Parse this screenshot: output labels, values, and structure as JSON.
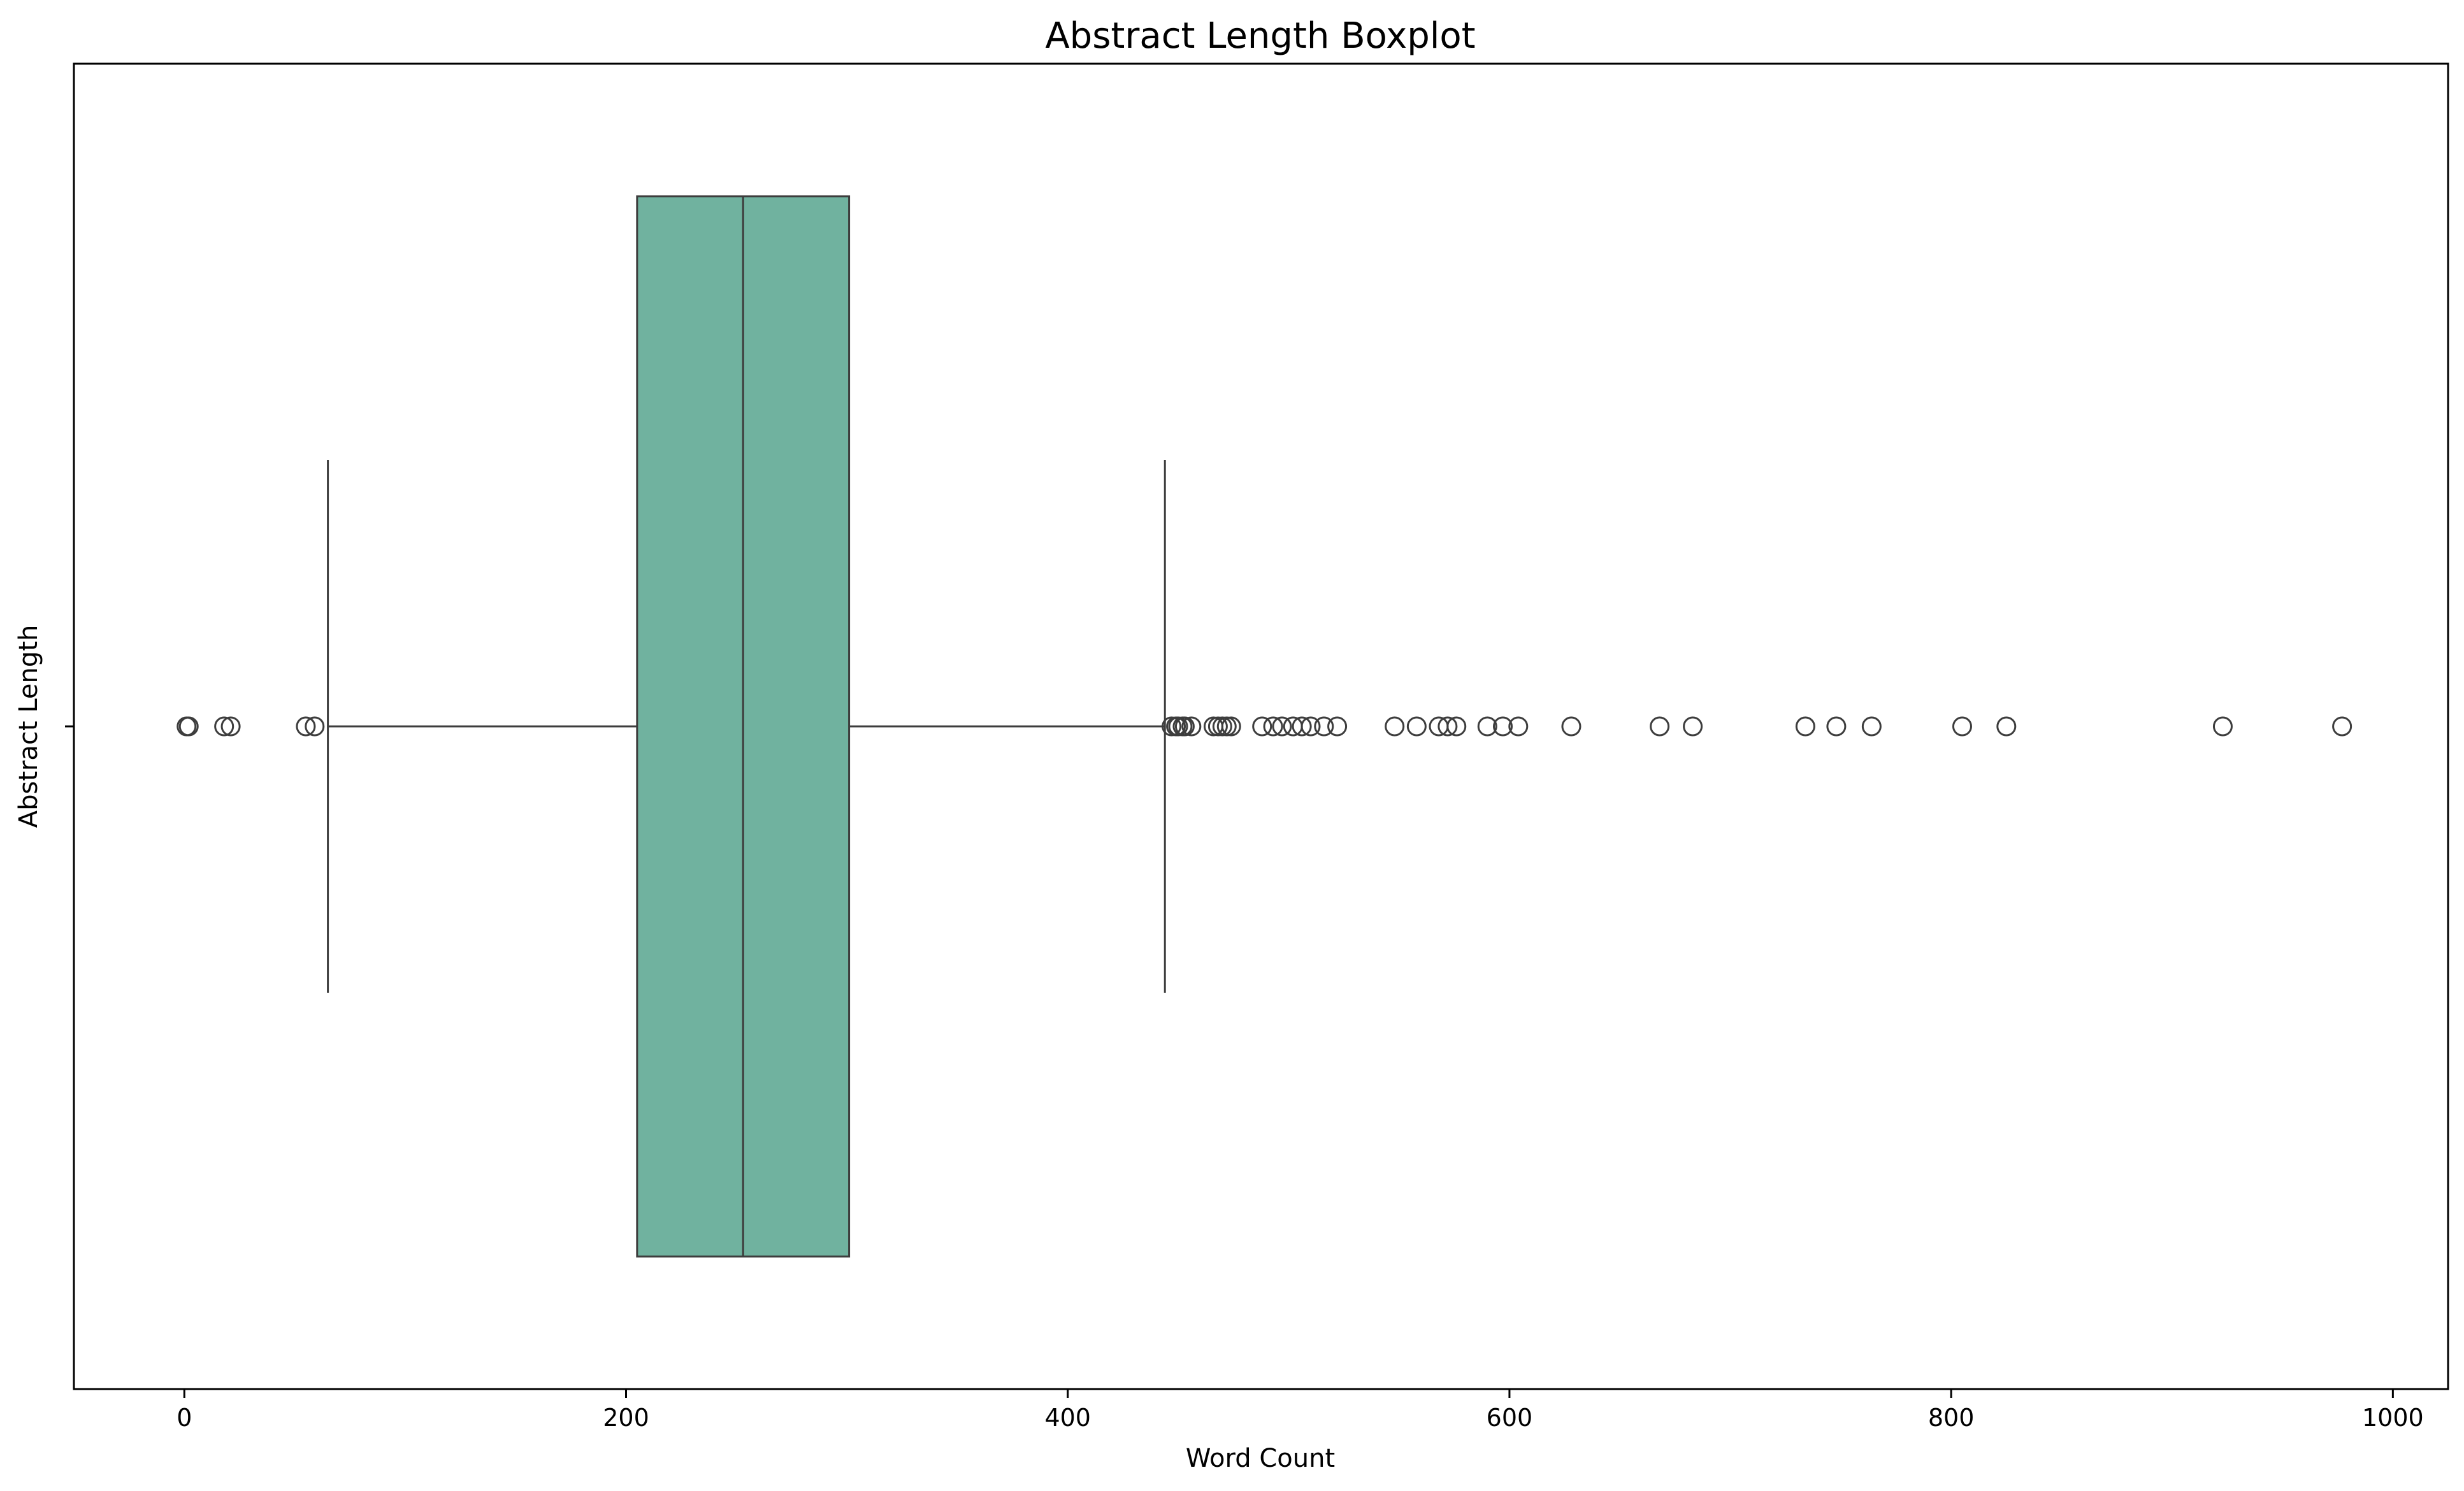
{
  "chart_data": {
    "type": "boxplot",
    "title": "Abstract Length Boxplot",
    "xlabel": "Word Count",
    "ylabel": "Abstract Length",
    "xlim": [
      -50,
      1025
    ],
    "xticks": [
      0,
      200,
      400,
      600,
      800,
      1000
    ],
    "xtick_labels": [
      "0",
      "200",
      "400",
      "600",
      "800",
      "1000"
    ],
    "grid": false,
    "orientation": "horizontal",
    "box": {
      "whisker_low": 65,
      "q1": 205,
      "median": 253,
      "q3": 301,
      "whisker_high": 444
    },
    "outliers": [
      1,
      2,
      18,
      21,
      55,
      59,
      447,
      449,
      450,
      452,
      453,
      456,
      466,
      468,
      470,
      472,
      474,
      488,
      493,
      497,
      502,
      506,
      510,
      516,
      522,
      548,
      558,
      568,
      572,
      576,
      590,
      597,
      604,
      628,
      668,
      683,
      734,
      748,
      764,
      805,
      825,
      923,
      977
    ],
    "colors": {
      "box_fill": "#70b29f",
      "line": "#3d3d3d",
      "frame": "#000000"
    }
  }
}
